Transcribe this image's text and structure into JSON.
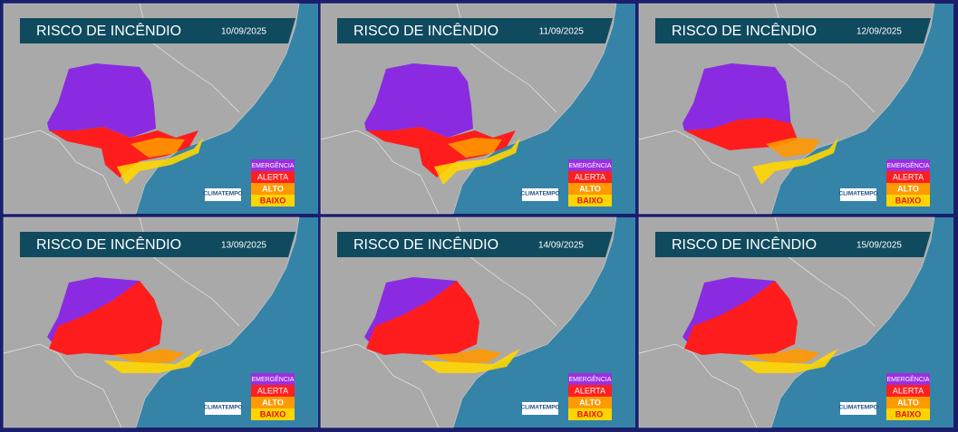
{
  "panels": [
    {
      "title": "RISCO DE INCÊNDIO",
      "date": "10/09/2025",
      "legend": [
        "EMERGÊNCIA",
        "ALERTA",
        "ALTO",
        "BAIXO"
      ],
      "brand": "CLIMATEMPO"
    },
    {
      "title": "RISCO DE INCÊNDIO",
      "date": "11/09/2025",
      "legend": [
        "EMERGÊNCIA",
        "ALERTA",
        "ALTO",
        "BAIXO"
      ],
      "brand": "CLIMATEMPO"
    },
    {
      "title": "RISCO DE INCÊNDIO",
      "date": "12/09/2025",
      "legend": [
        "EMERGÊNCIA",
        "ALERTA",
        "ALTO",
        "BAIXO"
      ],
      "brand": "CLIMATEMPO"
    },
    {
      "title": "RISCO DE INCÊNDIO",
      "date": "13/09/2025",
      "legend": [
        "EMERGÊNCIA",
        "ALERTA",
        "ALTO",
        "BAIXO"
      ],
      "brand": "CLIMATEMPO"
    },
    {
      "title": "RISCO DE INCÊNDIO",
      "date": "14/09/2025",
      "legend": [
        "EMERGÊNCIA",
        "ALERTA",
        "ALTO",
        "BAIXO"
      ],
      "brand": "CLIMATEMPO"
    },
    {
      "title": "RISCO DE INCÊNDIO",
      "date": "15/09/2025",
      "legend": [
        "EMERGÊNCIA",
        "ALERTA",
        "ALTO",
        "BAIXO"
      ],
      "brand": "CLIMATEMPO"
    }
  ]
}
